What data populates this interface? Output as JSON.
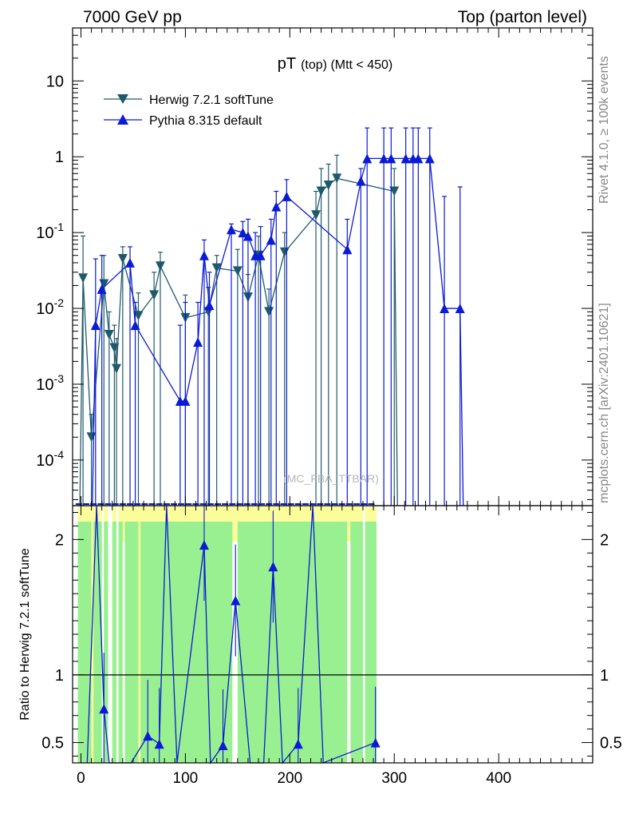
{
  "header": {
    "left": "7000 GeV pp",
    "right": "Top (parton level)"
  },
  "title": {
    "main": "pT",
    "sub": "(top) (Mtt < 450)"
  },
  "side_labels": {
    "rivet": "Rivet 4.1.0, ≥ 100k events",
    "mcplots": "mcplots.cern.ch [arXiv:2401.10621]"
  },
  "watermark": "(MC_FBA_TTBAR)",
  "legend": [
    {
      "label": "Herwig 7.2.1 softTune",
      "marker": "triangle-down",
      "color": "#1f5a6b"
    },
    {
      "label": "Pythia 8.315 default",
      "marker": "triangle-up",
      "color": "#0a1ad6"
    }
  ],
  "colors": {
    "herwig": "#1f5a6b",
    "pythia": "#0a1ad6",
    "band_green": "#99f090",
    "band_yellow": "#fbfc9a"
  },
  "chart_data": [
    {
      "type": "line",
      "panel": "main",
      "yscale": "log",
      "xlim": [
        -8,
        490
      ],
      "ylim": [
        2.5e-05,
        50
      ],
      "x_ticks": [
        0,
        100,
        200,
        300,
        400
      ],
      "y_tick_labels": [
        "10",
        "1",
        "10^-1",
        "10^-2",
        "10^-3",
        "10^-4"
      ],
      "series": [
        {
          "name": "Herwig 7.2.1 softTune",
          "points": [
            {
              "x": 2,
              "y": 0.025,
              "hi": 0.09
            },
            {
              "x": 10,
              "y": 0.0002,
              "hi": 0.0004
            },
            {
              "x": 22,
              "y": 0.021,
              "hi": 0.05
            },
            {
              "x": 27,
              "y": 0.0045,
              "hi": 0.009
            },
            {
              "x": 32,
              "y": 0.003,
              "hi": 0.006
            },
            {
              "x": 34,
              "y": 0.0016,
              "hi": 0.004
            },
            {
              "x": 40,
              "y": 0.045,
              "hi": 0.065
            },
            {
              "x": 55,
              "y": 0.008,
              "hi": 0.016
            },
            {
              "x": 70,
              "y": 0.015,
              "hi": 0.03
            },
            {
              "x": 76,
              "y": 0.036,
              "hi": 0.055
            },
            {
              "x": 100,
              "y": 0.0075,
              "hi": 0.015
            },
            {
              "x": 122,
              "y": 0.009,
              "hi": 0.019
            },
            {
              "x": 130,
              "y": 0.034,
              "hi": 0.05
            },
            {
              "x": 150,
              "y": 0.031,
              "hi": 0.06
            },
            {
              "x": 160,
              "y": 0.014,
              "hi": 0.028
            },
            {
              "x": 170,
              "y": 0.05,
              "hi": 0.09
            },
            {
              "x": 180,
              "y": 0.009,
              "hi": 0.018
            },
            {
              "x": 195,
              "y": 0.055,
              "hi": 0.1
            },
            {
              "x": 225,
              "y": 0.17,
              "hi": 0.35
            },
            {
              "x": 230,
              "y": 0.35,
              "hi": 0.7
            },
            {
              "x": 237,
              "y": 0.42,
              "hi": 0.8
            },
            {
              "x": 245,
              "y": 0.52,
              "hi": 1.05
            },
            {
              "x": 300,
              "y": 0.35,
              "hi": 0.7
            }
          ]
        },
        {
          "name": "Pythia 8.315 default",
          "points": [
            {
              "x": 14,
              "y": 0.006,
              "hi": 0.045
            },
            {
              "x": 20,
              "y": 0.018,
              "hi": 0.05
            },
            {
              "x": 47,
              "y": 0.04,
              "hi": 0.065
            },
            {
              "x": 52,
              "y": 0.006,
              "hi": 0.012
            },
            {
              "x": 95,
              "y": 0.0006,
              "hi": 0.006
            },
            {
              "x": 100,
              "y": 0.0006,
              "hi": 0.012
            },
            {
              "x": 112,
              "y": 0.0036,
              "hi": 0.012
            },
            {
              "x": 118,
              "y": 0.05,
              "hi": 0.08
            },
            {
              "x": 123,
              "y": 0.011,
              "hi": 0.03
            },
            {
              "x": 144,
              "y": 0.11,
              "hi": 0.13
            },
            {
              "x": 155,
              "y": 0.1,
              "hi": 0.14
            },
            {
              "x": 160,
              "y": 0.09,
              "hi": 0.15
            },
            {
              "x": 167,
              "y": 0.05,
              "hi": 0.1
            },
            {
              "x": 172,
              "y": 0.05,
              "hi": 0.12
            },
            {
              "x": 182,
              "y": 0.08,
              "hi": 0.15
            },
            {
              "x": 187,
              "y": 0.22,
              "hi": 0.35
            },
            {
              "x": 197,
              "y": 0.3,
              "hi": 0.5
            },
            {
              "x": 255,
              "y": 0.06,
              "hi": 0.15
            },
            {
              "x": 268,
              "y": 0.48,
              "hi": 0.7
            },
            {
              "x": 274,
              "y": 0.95,
              "hi": 2.4
            },
            {
              "x": 290,
              "y": 0.95,
              "hi": 2.4
            },
            {
              "x": 297,
              "y": 0.95,
              "hi": 2.4
            },
            {
              "x": 311,
              "y": 0.95,
              "hi": 2.4
            },
            {
              "x": 318,
              "y": 0.95,
              "hi": 2.4
            },
            {
              "x": 323,
              "y": 0.95,
              "hi": 2.4
            },
            {
              "x": 334,
              "y": 0.95,
              "hi": 2.4
            },
            {
              "x": 348,
              "y": 0.01,
              "hi": 0.3
            },
            {
              "x": 363,
              "y": 0.01,
              "hi": 0.4
            }
          ]
        }
      ]
    },
    {
      "type": "line",
      "panel": "ratio",
      "ylabel": "Ratio to Herwig 7.2.1 softTune",
      "xlim": [
        -8,
        490
      ],
      "ylim": [
        0.35,
        2.25
      ],
      "x_ticks": [
        0,
        100,
        200,
        300,
        400
      ],
      "y_ticks": [
        0.5,
        1,
        2
      ],
      "reference_line": 1,
      "series": [
        {
          "name": "Pythia 8.315 default / Herwig",
          "points": [
            {
              "x": 6,
              "y": 0.3
            },
            {
              "x": 15,
              "y": 2.3
            },
            {
              "x": 22,
              "y": 0.75
            },
            {
              "x": 27,
              "y": 0.3
            },
            {
              "x": 48,
              "y": 0.3
            },
            {
              "x": 64,
              "y": 0.55
            },
            {
              "x": 75,
              "y": 0.49
            },
            {
              "x": 82,
              "y": 2.3
            },
            {
              "x": 92,
              "y": 0.3
            },
            {
              "x": 118,
              "y": 1.96
            },
            {
              "x": 124,
              "y": 0.3
            },
            {
              "x": 136,
              "y": 0.48
            },
            {
              "x": 148,
              "y": 1.55
            },
            {
              "x": 162,
              "y": 0.3
            },
            {
              "x": 175,
              "y": 0.3
            },
            {
              "x": 184,
              "y": 1.8
            },
            {
              "x": 193,
              "y": 0.3
            },
            {
              "x": 208,
              "y": 0.49
            },
            {
              "x": 222,
              "y": 2.25
            },
            {
              "x": 232,
              "y": 0.3
            },
            {
              "x": 282,
              "y": 0.5
            }
          ]
        }
      ]
    }
  ]
}
